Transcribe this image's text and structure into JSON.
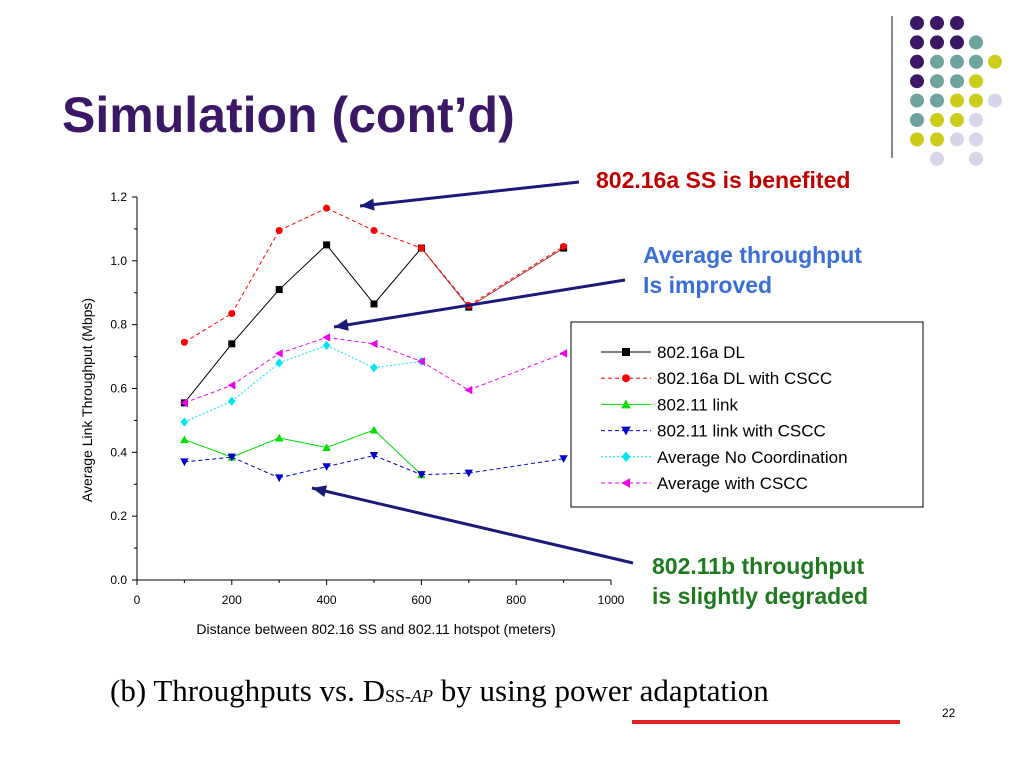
{
  "slide": {
    "title": "Simulation (cont’d)",
    "slide_number": "22"
  },
  "callouts": {
    "benefited": "802.16a SS is benefited",
    "improved_line1": "Average throughput",
    "improved_line2": "Is improved",
    "degraded_line1": "802.11b throughput",
    "degraded_line2": "is slightly degraded"
  },
  "caption": {
    "prefix": "(b) Throughputs vs. D",
    "sub_main": "SS-",
    "sub_italic": "AP",
    "middle": " by using ",
    "underlined": "power adaptation"
  },
  "decoration": {
    "colors": {
      "purple": "#3b1766",
      "teal": "#6fa39f",
      "yellow": "#cccc1a",
      "lavender": "#d6d6e8"
    }
  },
  "chart_data": {
    "type": "line",
    "title": "",
    "xlabel": "Distance between 802.16 SS and 802.11 hotspot (meters)",
    "ylabel": "Average Link Throughput (Mbps)",
    "xlim": [
      0,
      1000
    ],
    "ylim": [
      0.0,
      1.2
    ],
    "x_ticks": [
      "0",
      "200",
      "400",
      "600",
      "800",
      "1000"
    ],
    "y_ticks": [
      "0.0",
      "0.2",
      "0.4",
      "0.6",
      "0.8",
      "1.0",
      "1.2"
    ],
    "grid": false,
    "legend_position": "right",
    "series": [
      {
        "name": "802.16a DL",
        "color": "#000000",
        "marker": "square",
        "dash": "solid",
        "x": [
          100,
          200,
          300,
          400,
          500,
          600,
          700,
          900
        ],
        "y": [
          0.555,
          0.74,
          0.91,
          1.05,
          0.865,
          1.04,
          0.855,
          1.04
        ]
      },
      {
        "name": "802.16a DL with CSCC",
        "color": "#ff0000",
        "marker": "circle",
        "dash": "dashed",
        "x": [
          100,
          200,
          300,
          400,
          500,
          600,
          700,
          900
        ],
        "y": [
          0.745,
          0.835,
          1.095,
          1.165,
          1.095,
          1.04,
          0.86,
          1.045
        ]
      },
      {
        "name": "802.11 link",
        "color": "#00dd00",
        "marker": "triangle-up",
        "dash": "solid",
        "x": [
          100,
          200,
          300,
          400,
          500,
          600
        ],
        "y": [
          0.44,
          0.385,
          0.445,
          0.415,
          0.47,
          0.33
        ]
      },
      {
        "name": "802.11 link with CSCC",
        "color": "#0000cc",
        "marker": "triangle-down",
        "dash": "dashed",
        "x": [
          100,
          200,
          300,
          400,
          500,
          600,
          700,
          900
        ],
        "y": [
          0.37,
          0.385,
          0.32,
          0.355,
          0.39,
          0.33,
          0.335,
          0.38
        ]
      },
      {
        "name": "Average No Coordination",
        "color": "#00e5ee",
        "marker": "diamond",
        "dash": "dotted",
        "x": [
          100,
          200,
          300,
          400,
          500,
          600
        ],
        "y": [
          0.495,
          0.56,
          0.68,
          0.735,
          0.665,
          0.685
        ]
      },
      {
        "name": "Average with CSCC",
        "color": "#ee00ee",
        "marker": "triangle-left",
        "dash": "dashed",
        "x": [
          100,
          200,
          300,
          400,
          500,
          600,
          700,
          900
        ],
        "y": [
          0.555,
          0.61,
          0.71,
          0.76,
          0.74,
          0.685,
          0.595,
          0.71
        ]
      }
    ]
  }
}
